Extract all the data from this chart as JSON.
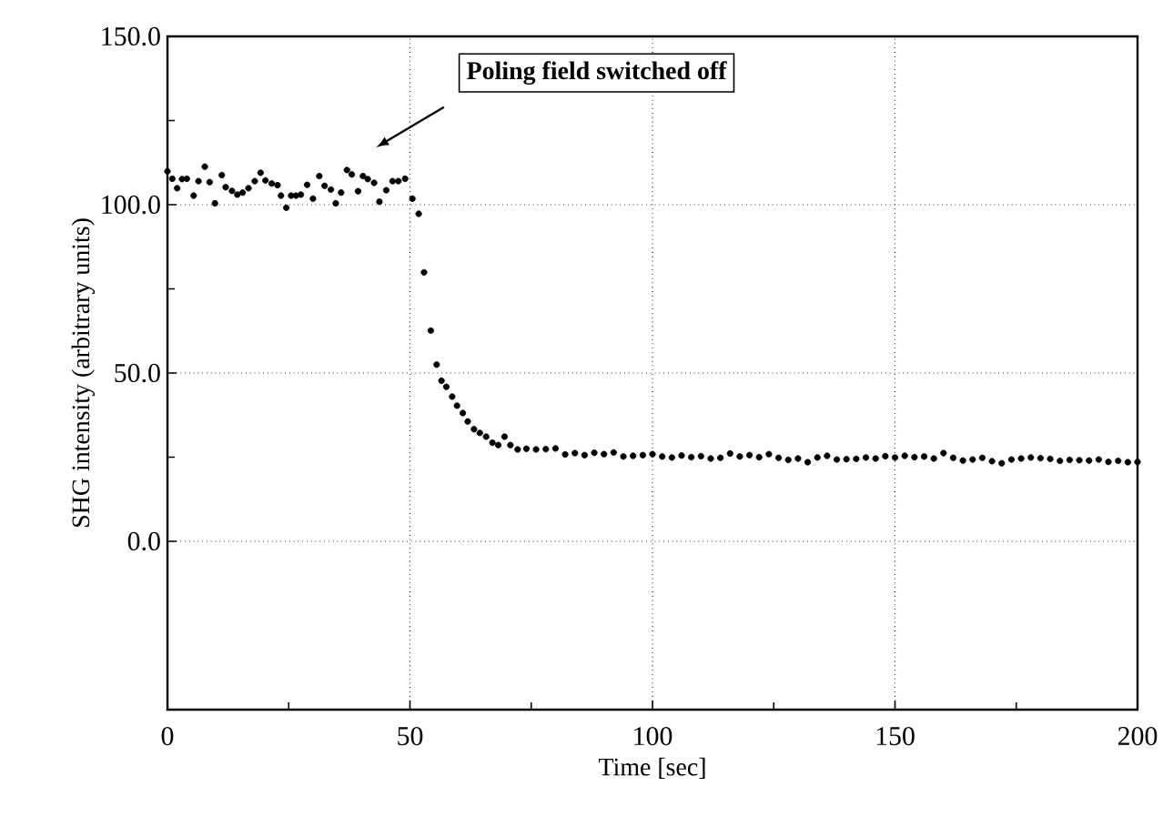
{
  "chart_data": {
    "type": "scatter",
    "xlabel": "Time [sec]",
    "ylabel": "SHG intensity (arbitrary units)",
    "annotations": [
      "Poling field switched off"
    ],
    "xlim": [
      0,
      200
    ],
    "xticks": [
      0,
      50,
      100,
      150,
      200
    ],
    "ylim": [
      -50,
      150
    ],
    "yticks": [
      {
        "value": 0,
        "label": "0.0"
      },
      {
        "value": 50,
        "label": "50.0"
      },
      {
        "value": 100,
        "label": "100.0"
      },
      {
        "value": 150,
        "label": "150.0"
      }
    ],
    "grid": true,
    "marker": "circle",
    "series": [
      {
        "color": "#000000",
        "x": [
          0,
          1,
          2,
          3,
          4,
          5.4,
          6.4,
          7.7,
          8.7,
          9.8,
          11.2,
          12,
          13.3,
          14.4,
          15.5,
          16.7,
          18,
          19.2,
          20.2,
          21.5,
          22.7,
          23.4,
          24.5,
          25.5,
          26.5,
          27.5,
          28.8,
          30,
          31.3,
          32.4,
          33.7,
          34.7,
          35.8,
          37,
          38,
          39.3,
          40.3,
          41.3,
          42.6,
          43.7,
          45.1,
          46.4,
          47.6,
          49,
          50.5,
          51.8,
          52.9,
          54.3,
          55.5,
          56.5,
          57.5,
          58.7,
          59.7,
          60.9,
          61.9,
          63.2,
          64.4,
          65.7,
          67,
          68.2,
          69.5,
          70.7,
          72.2,
          74,
          76,
          78,
          80,
          82,
          84,
          86,
          88,
          90,
          92,
          94,
          96,
          98,
          100,
          102,
          104,
          106,
          108,
          110,
          112,
          114,
          116,
          118,
          120,
          122,
          124,
          126,
          128,
          130,
          132,
          134,
          136,
          138,
          140,
          142,
          144,
          146,
          148,
          150,
          152,
          154,
          156,
          158,
          160,
          162,
          164,
          166,
          168,
          170,
          172,
          174,
          176,
          178,
          180,
          182,
          184,
          186,
          188,
          190,
          192,
          194,
          196,
          198,
          200
        ],
        "values": [
          109.9,
          107.7,
          104.9,
          107.6,
          107.7,
          102.7,
          107,
          111.3,
          106.7,
          100.4,
          108.8,
          105.2,
          104.1,
          103,
          103.6,
          104.9,
          107,
          109.5,
          107.2,
          106.3,
          105.8,
          102.7,
          99.1,
          102.7,
          102.7,
          103,
          105.9,
          101.8,
          108.5,
          105.6,
          104.5,
          100.4,
          103.6,
          110.3,
          109,
          104,
          108.5,
          107.6,
          106.5,
          100.9,
          104.3,
          107,
          107,
          107.7,
          101.8,
          97.3,
          79.9,
          62.6,
          52.5,
          47.7,
          45.9,
          43,
          40.3,
          38.1,
          35.6,
          33.3,
          32.2,
          31.1,
          29.3,
          28.6,
          31.1,
          28.6,
          27.3,
          27.5,
          27.3,
          27.4,
          27.6,
          25.8,
          26.2,
          25.6,
          26.3,
          25.9,
          26.4,
          25.2,
          25.4,
          25.6,
          25.9,
          25.2,
          24.9,
          25.5,
          25,
          25.3,
          24.6,
          24.8,
          26.1,
          25.2,
          25.6,
          25,
          25.9,
          24.8,
          24.2,
          24.6,
          23.5,
          24.9,
          25.4,
          24.3,
          24.4,
          24.5,
          24.9,
          24.6,
          25.3,
          24.9,
          25.4,
          25,
          25.2,
          24.6,
          26.2,
          24.8,
          24,
          24.3,
          24.8,
          23.8,
          23.2,
          24.3,
          24.6,
          24.9,
          24.7,
          24.5,
          23.9,
          24.2,
          24.1,
          24,
          24.3,
          23.6,
          23.9,
          23.5,
          23.6
        ]
      }
    ]
  }
}
